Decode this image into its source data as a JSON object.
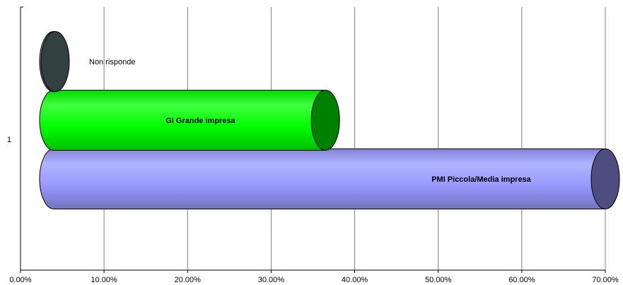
{
  "chart_data": {
    "type": "bar",
    "orientation": "horizontal",
    "style": "3d-cylinder",
    "categories": [
      "1"
    ],
    "series": [
      {
        "name": "PMI Piccola/Media impresa",
        "values": [
          70.0
        ],
        "color": "#9999FF",
        "label_bold": true
      },
      {
        "name": "GI Grande impresa",
        "values": [
          36.5
        ],
        "color": "#00FF00",
        "label_bold": true
      },
      {
        "name": "Non risponde",
        "values": [
          3.0
        ],
        "color": "#668080",
        "label_bold": false
      }
    ],
    "x_ticks": [
      "0.00%",
      "10.00%",
      "20.00%",
      "30.00%",
      "40.00%",
      "50.00%",
      "60.00%",
      "70.00%"
    ],
    "xlim": [
      0,
      70
    ],
    "grid": true,
    "legend": "none",
    "title": "",
    "xlabel": "",
    "ylabel": ""
  }
}
